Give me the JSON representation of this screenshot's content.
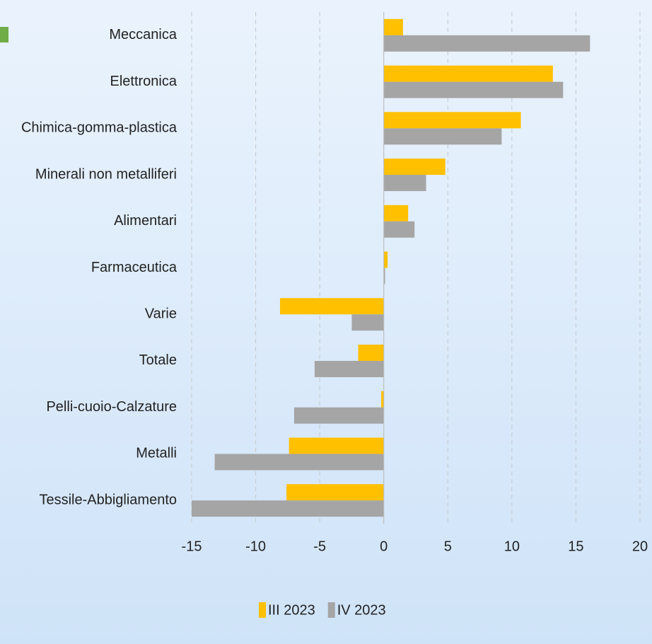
{
  "chart_data": {
    "type": "bar",
    "orientation": "horizontal",
    "categories": [
      "Meccanica",
      "Elettronica",
      "Chimica-gomma-plastica",
      "Minerali non metalliferi",
      "Alimentari",
      "Farmaceutica",
      "Varie",
      "Totale",
      "Pelli-cuoio-Calzature",
      "Metalli",
      "Tessile-Abbigliamento"
    ],
    "series": [
      {
        "name": "III 2023",
        "color": "#ffc000",
        "values": [
          1.5,
          13.2,
          10.7,
          4.8,
          1.9,
          0.3,
          -8.1,
          -2.0,
          -0.2,
          -7.4,
          -7.6
        ]
      },
      {
        "name": "IV 2023",
        "color": "#a5a5a5",
        "values": [
          16.1,
          14.0,
          9.2,
          3.3,
          2.4,
          0.1,
          -2.5,
          -5.4,
          -7.0,
          -13.2,
          -15.0
        ]
      }
    ],
    "xlim": [
      -15,
      20
    ],
    "xticks": [
      -15,
      -10,
      -5,
      0,
      5,
      10,
      15,
      20
    ],
    "grid": true,
    "legend": "bottom"
  }
}
